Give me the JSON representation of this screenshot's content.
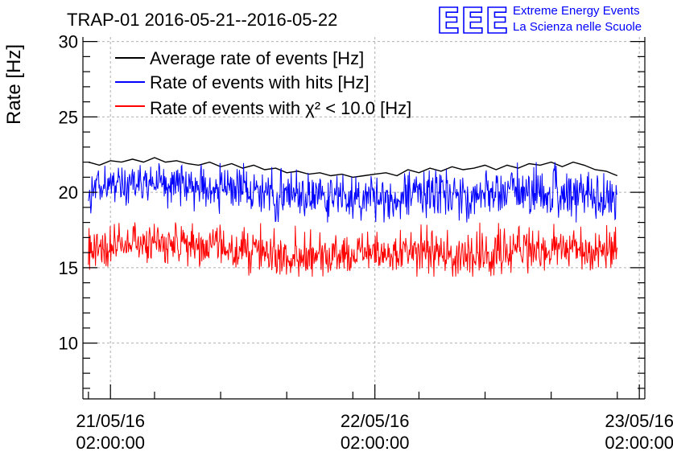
{
  "chart_data": {
    "type": "line",
    "title": "TRAP-01 2016-05-21--2016-05-22",
    "ylabel": "Rate [Hz]",
    "xlabel": "",
    "ylim": [
      6.3,
      30.3
    ],
    "xlim": [
      "2016-05-20 23:30:00",
      "2016-05-23 02:30:00"
    ],
    "y_ticks": [
      10,
      15,
      20,
      25,
      30
    ],
    "x_ticks": [
      {
        "date": "21/05/16",
        "time": "02:00:00",
        "at": "2016-05-21 02:00:00"
      },
      {
        "date": "22/05/16",
        "time": "02:00:00",
        "at": "2016-05-22 02:00:00"
      },
      {
        "date": "23/05/16",
        "time": "02:00:00",
        "at": "2016-05-23 02:00:00"
      }
    ],
    "grid": true,
    "legend_position": "top-left",
    "series": [
      {
        "name": "Average rate of events [Hz]",
        "color": "#000000",
        "x": [
          "2016-05-21 00:00",
          "2016-05-21 01:00",
          "2016-05-21 02:00",
          "2016-05-21 03:00",
          "2016-05-21 04:00",
          "2016-05-21 05:00",
          "2016-05-21 06:00",
          "2016-05-21 07:00",
          "2016-05-21 08:00",
          "2016-05-21 09:00",
          "2016-05-21 10:00",
          "2016-05-21 11:00",
          "2016-05-21 12:00",
          "2016-05-21 13:00",
          "2016-05-21 14:00",
          "2016-05-21 15:00",
          "2016-05-21 16:00",
          "2016-05-21 17:00",
          "2016-05-21 18:00",
          "2016-05-21 19:00",
          "2016-05-21 20:00",
          "2016-05-21 21:00",
          "2016-05-21 22:00",
          "2016-05-21 23:00",
          "2016-05-22 00:00",
          "2016-05-22 01:00",
          "2016-05-22 02:00",
          "2016-05-22 03:00",
          "2016-05-22 04:00",
          "2016-05-22 05:00",
          "2016-05-22 06:00",
          "2016-05-22 07:00",
          "2016-05-22 08:00",
          "2016-05-22 09:00",
          "2016-05-22 10:00",
          "2016-05-22 11:00",
          "2016-05-22 12:00",
          "2016-05-22 13:00",
          "2016-05-22 14:00",
          "2016-05-22 15:00",
          "2016-05-22 16:00",
          "2016-05-22 17:00",
          "2016-05-22 18:00",
          "2016-05-22 19:00",
          "2016-05-22 20:00",
          "2016-05-22 21:00",
          "2016-05-22 22:00",
          "2016-05-22 23:00",
          "2016-05-23 00:00"
        ],
        "values": [
          22.0,
          21.8,
          22.1,
          22.0,
          22.2,
          22.0,
          22.3,
          22.0,
          22.1,
          21.9,
          21.8,
          22.0,
          21.7,
          21.9,
          21.6,
          21.8,
          21.5,
          21.6,
          21.3,
          21.4,
          21.2,
          21.3,
          21.1,
          21.2,
          21.0,
          21.1,
          21.2,
          21.3,
          21.1,
          21.5,
          21.3,
          21.6,
          21.4,
          21.7,
          21.5,
          21.6,
          21.8,
          21.5,
          21.8,
          21.6,
          21.9,
          21.8,
          22.0,
          21.7,
          22.0,
          21.8,
          21.5,
          21.4,
          21.1
        ]
      },
      {
        "name": "Rate of events with hits [Hz]",
        "color": "#0000ff",
        "x": [
          "2016-05-21 00:00",
          "2016-05-21 06:00",
          "2016-05-21 12:00",
          "2016-05-21 18:00",
          "2016-05-22 00:00",
          "2016-05-22 06:00",
          "2016-05-22 12:00",
          "2016-05-22 18:00",
          "2016-05-23 00:00"
        ],
        "values": [
          20.4,
          20.7,
          20.3,
          19.9,
          19.6,
          19.8,
          19.9,
          20.0,
          19.6
        ],
        "min": 18.0,
        "max": 22.0
      },
      {
        "name": "Rate of events with χ² < 10.0 [Hz]",
        "color": "#ff0000",
        "x": [
          "2016-05-21 00:00",
          "2016-05-21 06:00",
          "2016-05-21 12:00",
          "2016-05-21 18:00",
          "2016-05-22 00:00",
          "2016-05-22 06:00",
          "2016-05-22 12:00",
          "2016-05-22 18:00",
          "2016-05-23 00:00"
        ],
        "values": [
          16.2,
          16.6,
          16.3,
          16.0,
          15.9,
          16.0,
          16.1,
          16.2,
          16.0
        ],
        "min": 14.4,
        "max": 18.0
      }
    ]
  },
  "logo": {
    "letters": "EEE",
    "line1": "Extreme Energy Events",
    "line2": "La Scienza nelle Scuole",
    "color": "#0000ff"
  }
}
